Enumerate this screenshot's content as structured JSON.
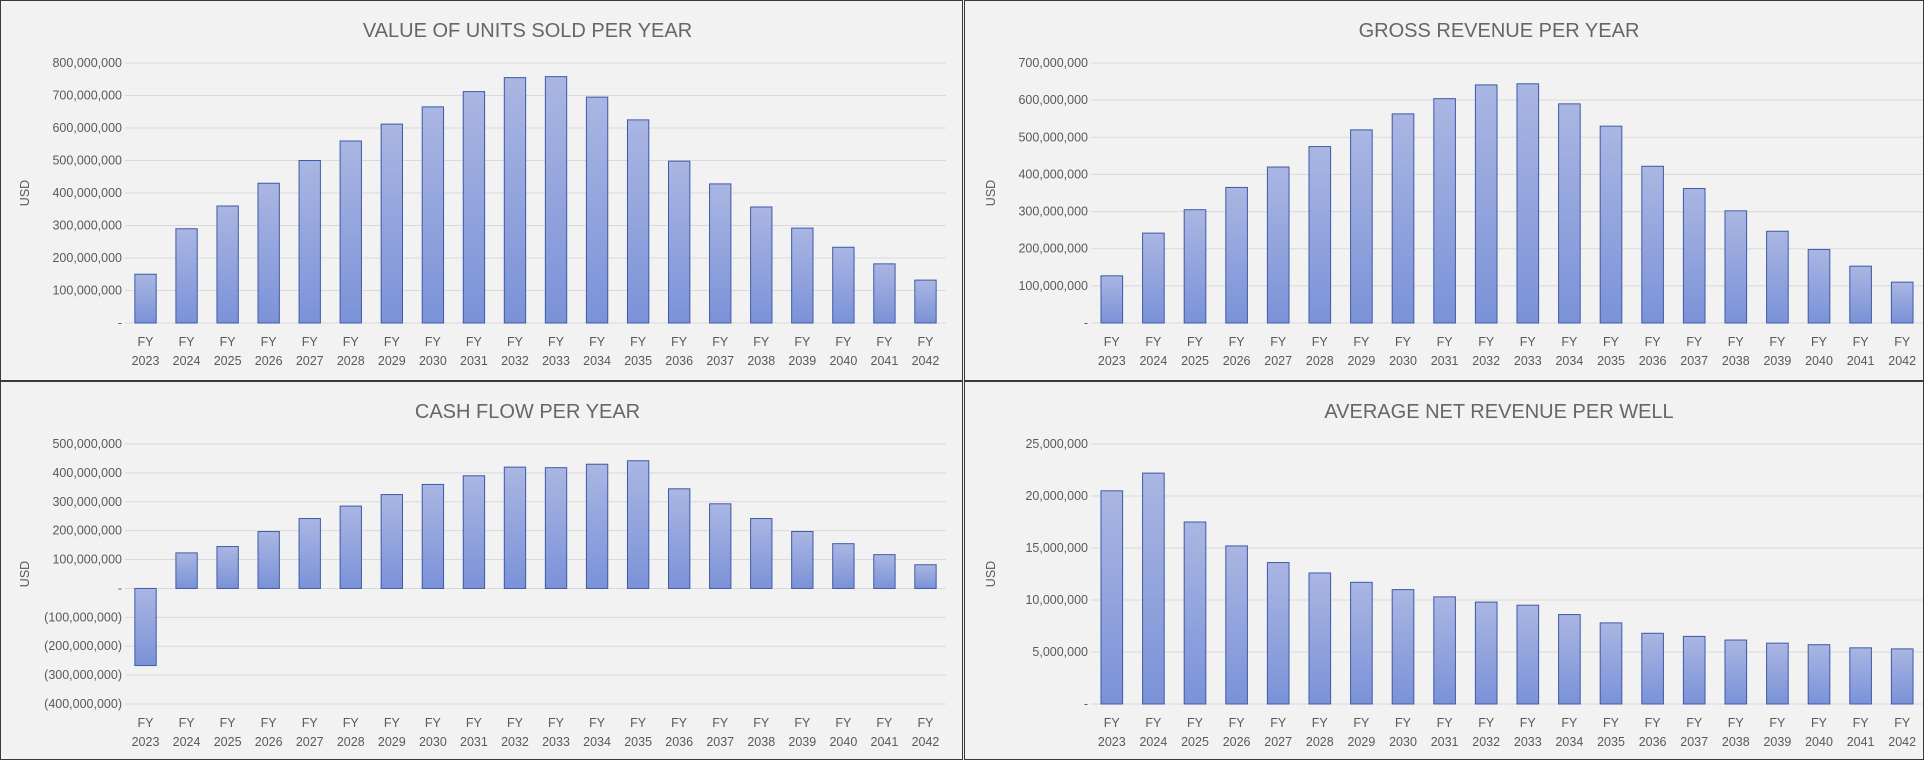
{
  "colors": {
    "bar_top": "#aab6e2",
    "bar_bottom": "#7b92d8",
    "bar_stroke": "#3d5aa8",
    "gridline": "#d9d9d9",
    "background": "#f2f2f2",
    "text": "#595959"
  },
  "chart_data": [
    {
      "type": "bar",
      "title": "VALUE OF UNITS SOLD PER YEAR",
      "ylabel": "USD",
      "xlabel": "",
      "ylim": [
        0,
        800000000
      ],
      "grid": true,
      "yticks": [
        0,
        100000000,
        200000000,
        300000000,
        400000000,
        500000000,
        600000000,
        700000000,
        800000000
      ],
      "ytick_labels": [
        "-",
        "100,000,000",
        "200,000,000",
        "300,000,000",
        "400,000,000",
        "500,000,000",
        "600,000,000",
        "700,000,000",
        "800,000,000"
      ],
      "categories": [
        "FY 2023",
        "FY 2024",
        "FY 2025",
        "FY 2026",
        "FY 2027",
        "FY 2028",
        "FY 2029",
        "FY 2030",
        "FY 2031",
        "FY 2032",
        "FY 2033",
        "FY 2034",
        "FY 2035",
        "FY 2036",
        "FY 2037",
        "FY 2038",
        "FY 2039",
        "FY 2040",
        "FY 2041",
        "FY 2042"
      ],
      "values": [
        150000000,
        290000000,
        360000000,
        430000000,
        500000000,
        560000000,
        612000000,
        665000000,
        712000000,
        755000000,
        758000000,
        695000000,
        625000000,
        498000000,
        428000000,
        357000000,
        292000000,
        233000000,
        182000000,
        132000000
      ]
    },
    {
      "type": "bar",
      "title": "GROSS REVENUE PER YEAR",
      "ylabel": "USD",
      "xlabel": "",
      "ylim": [
        0,
        700000000
      ],
      "grid": true,
      "yticks": [
        0,
        100000000,
        200000000,
        300000000,
        400000000,
        500000000,
        600000000,
        700000000
      ],
      "ytick_labels": [
        "-",
        "100,000,000",
        "200,000,000",
        "300,000,000",
        "400,000,000",
        "500,000,000",
        "600,000,000",
        "700,000,000"
      ],
      "categories": [
        "FY 2023",
        "FY 2024",
        "FY 2025",
        "FY 2026",
        "FY 2027",
        "FY 2028",
        "FY 2029",
        "FY 2030",
        "FY 2031",
        "FY 2032",
        "FY 2033",
        "FY 2034",
        "FY 2035",
        "FY 2036",
        "FY 2037",
        "FY 2038",
        "FY 2039",
        "FY 2040",
        "FY 2041",
        "FY 2042"
      ],
      "values": [
        127000000,
        242000000,
        305000000,
        365000000,
        420000000,
        475000000,
        520000000,
        563000000,
        604000000,
        641000000,
        644000000,
        590000000,
        530000000,
        422000000,
        362000000,
        302000000,
        247000000,
        198000000,
        153000000,
        110000000
      ]
    },
    {
      "type": "bar",
      "title": "CASH FLOW PER YEAR",
      "ylabel": "USD",
      "xlabel": "",
      "ylim": [
        -400000000,
        500000000
      ],
      "grid": true,
      "yticks": [
        -400000000,
        -300000000,
        -200000000,
        -100000000,
        0,
        100000000,
        200000000,
        300000000,
        400000000,
        500000000
      ],
      "ytick_labels": [
        "(400,000,000)",
        "(300,000,000)",
        "(200,000,000)",
        "(100,000,000)",
        "-",
        "100,000,000",
        "200,000,000",
        "300,000,000",
        "400,000,000",
        "500,000,000"
      ],
      "categories": [
        "FY 2023",
        "FY 2024",
        "FY 2025",
        "FY 2026",
        "FY 2027",
        "FY 2028",
        "FY 2029",
        "FY 2030",
        "FY 2031",
        "FY 2032",
        "FY 2033",
        "FY 2034",
        "FY 2035",
        "FY 2036",
        "FY 2037",
        "FY 2038",
        "FY 2039",
        "FY 2040",
        "FY 2041",
        "FY 2042"
      ],
      "values": [
        -267000000,
        123000000,
        145000000,
        197000000,
        242000000,
        285000000,
        325000000,
        360000000,
        390000000,
        420000000,
        418000000,
        430000000,
        442000000,
        345000000,
        293000000,
        242000000,
        197000000,
        155000000,
        117000000,
        82000000
      ]
    },
    {
      "type": "bar",
      "title": "AVERAGE NET REVENUE PER WELL",
      "ylabel": "USD",
      "xlabel": "",
      "ylim": [
        0,
        25000000
      ],
      "grid": true,
      "yticks": [
        0,
        5000000,
        10000000,
        15000000,
        20000000,
        25000000
      ],
      "ytick_labels": [
        "-",
        "5,000,000",
        "10,000,000",
        "15,000,000",
        "20,000,000",
        "25,000,000"
      ],
      "categories": [
        "FY 2023",
        "FY 2024",
        "FY 2025",
        "FY 2026",
        "FY 2027",
        "FY 2028",
        "FY 2029",
        "FY 2030",
        "FY 2031",
        "FY 2032",
        "FY 2033",
        "FY 2034",
        "FY 2035",
        "FY 2036",
        "FY 2037",
        "FY 2038",
        "FY 2039",
        "FY 2040",
        "FY 2041",
        "FY 2042"
      ],
      "values": [
        20500000,
        22200000,
        17500000,
        15200000,
        13600000,
        12600000,
        11700000,
        11000000,
        10300000,
        9800000,
        9500000,
        8600000,
        7800000,
        6800000,
        6500000,
        6150000,
        5850000,
        5700000,
        5400000,
        5300000
      ]
    }
  ]
}
